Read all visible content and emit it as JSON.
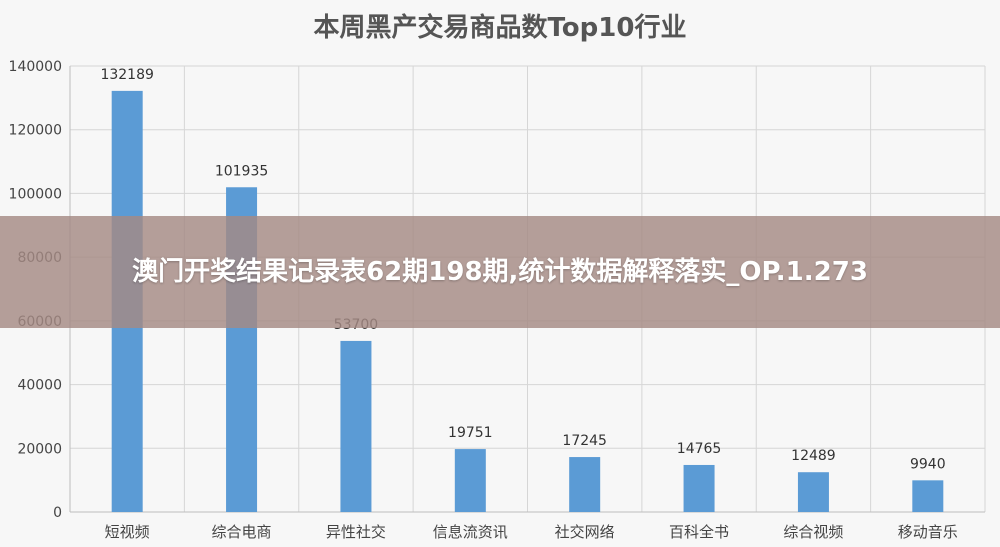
{
  "overlay": {
    "headline": "澳门开奖结果记录表62期198期,统计数据解释落实_OP.1.273"
  },
  "chart_data": {
    "type": "bar",
    "title": "本周黑产交易商品数Top10行业",
    "xlabel": "",
    "ylabel": "",
    "categories": [
      "短视频",
      "综合电商",
      "异性社交",
      "信息流资讯",
      "社交网络",
      "百科全书",
      "综合视频",
      "移动音乐"
    ],
    "values": [
      132189,
      101935,
      53700,
      19751,
      17245,
      14765,
      12489,
      9940
    ],
    "value_labels": [
      "132189",
      "101935",
      "53700",
      "19751",
      "17245",
      "14765",
      "12489",
      "9940"
    ],
    "ylim": [
      0,
      140000
    ],
    "yticks": [
      0,
      20000,
      40000,
      60000,
      80000,
      100000,
      120000,
      140000
    ],
    "ytick_labels": [
      "0",
      "20000",
      "40000",
      "60000",
      "80000",
      "100000",
      "120000",
      "140000"
    ],
    "grid": true,
    "legend": "none",
    "bar_color": "#5b9bd5"
  }
}
